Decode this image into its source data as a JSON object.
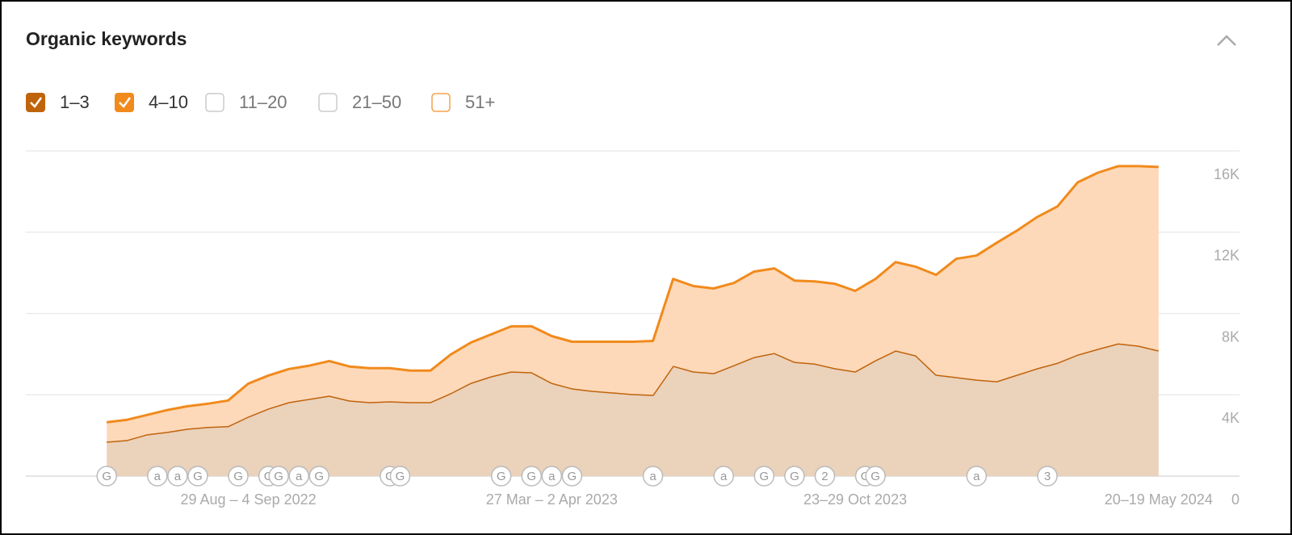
{
  "chart_data": {
    "type": "stacked-area",
    "title": "Organic keywords",
    "x": [
      0,
      2,
      4,
      6,
      8,
      10,
      12,
      14,
      16,
      18,
      20,
      22,
      24,
      26,
      28,
      30,
      32,
      34,
      36,
      38,
      40,
      42,
      44,
      46,
      48,
      50,
      52,
      54,
      56,
      58,
      60,
      62,
      64,
      66,
      68,
      70,
      72,
      74,
      76,
      78,
      80,
      82,
      84,
      86,
      88,
      90,
      92,
      94,
      96,
      98,
      100,
      102,
      104
    ],
    "xlim": [
      -8,
      112
    ],
    "xticks": [
      {
        "value": 14,
        "label": "29 Aug – 4 Sep 2022"
      },
      {
        "value": 44,
        "label": "27 Mar – 2 Apr 2023"
      },
      {
        "value": 74,
        "label": "23–29 Oct 2023"
      },
      {
        "value": 104,
        "label": "20–19 May 2024"
      }
    ],
    "ylim": [
      0,
      16000
    ],
    "yticks": [
      0,
      {
        "value": 4000,
        "label": "4K"
      },
      {
        "value": 8000,
        "label": "8K"
      },
      {
        "value": 12000,
        "label": "12K"
      },
      {
        "value": 16000,
        "label": "16K"
      }
    ],
    "grid": true,
    "series": [
      {
        "name": "1–3",
        "color": "#c0640c",
        "fill": "#ebd2bb",
        "checked": true,
        "values": [
          1700,
          1780,
          2060,
          2180,
          2340,
          2420,
          2460,
          2930,
          3330,
          3640,
          3800,
          3960,
          3720,
          3640,
          3680,
          3640,
          3640,
          4080,
          4590,
          4910,
          5150,
          5110,
          4590,
          4320,
          4200,
          4120,
          4040,
          4000,
          5430,
          5150,
          5070,
          5460,
          5860,
          6060,
          5620,
          5540,
          5310,
          5150,
          5700,
          6180,
          5940,
          4990,
          4870,
          4750,
          4670,
          4990,
          5310,
          5580,
          5980,
          6260,
          6530,
          6420,
          6180
        ]
      },
      {
        "name": "4–10",
        "color": "#f18a1c",
        "fill": "#fdd9b9",
        "checked": true,
        "values": [
          950,
          990,
          950,
          1070,
          1100,
          1140,
          1260,
          1620,
          1620,
          1630,
          1630,
          1700,
          1670,
          1670,
          1630,
          1550,
          1550,
          1900,
          1980,
          2060,
          2220,
          2260,
          2300,
          2290,
          2410,
          2490,
          2570,
          2650,
          4270,
          4200,
          4160,
          4040,
          4200,
          4160,
          4000,
          4040,
          4150,
          3960,
          4000,
          4350,
          4360,
          4910,
          5820,
          6100,
          6810,
          7090,
          7440,
          7690,
          8470,
          8670,
          8720,
          8830,
          9030
        ]
      }
    ],
    "inactive_series": [
      {
        "name": "11–20",
        "color": "#cccccc",
        "checked": false
      },
      {
        "name": "21–50",
        "color": "#cccccc",
        "checked": false
      },
      {
        "name": "51+",
        "color": "#f5a04a",
        "checked": false
      }
    ],
    "annotations": [
      {
        "x": 0,
        "label": "G"
      },
      {
        "x": 5,
        "label": "a"
      },
      {
        "x": 7,
        "label": "a"
      },
      {
        "x": 9,
        "label": "G"
      },
      {
        "x": 13,
        "label": "G"
      },
      {
        "x": 16,
        "label": "G"
      },
      {
        "x": 17,
        "label": "G"
      },
      {
        "x": 19,
        "label": "a"
      },
      {
        "x": 21,
        "label": "G"
      },
      {
        "x": 28,
        "label": "G"
      },
      {
        "x": 29,
        "label": "G"
      },
      {
        "x": 39,
        "label": "G"
      },
      {
        "x": 42,
        "label": "G"
      },
      {
        "x": 44,
        "label": "a"
      },
      {
        "x": 46,
        "label": "G"
      },
      {
        "x": 54,
        "label": "a"
      },
      {
        "x": 61,
        "label": "a"
      },
      {
        "x": 65,
        "label": "G"
      },
      {
        "x": 68,
        "label": "G"
      },
      {
        "x": 71,
        "label": "2"
      },
      {
        "x": 75,
        "label": "G"
      },
      {
        "x": 76,
        "label": "G"
      },
      {
        "x": 86,
        "label": "a"
      },
      {
        "x": 93,
        "label": "3"
      }
    ]
  }
}
